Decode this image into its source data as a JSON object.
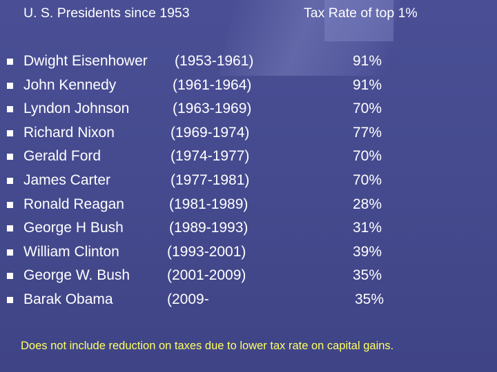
{
  "header": {
    "left_title": "U. S. Presidents since 1953",
    "right_title": "Tax Rate of top 1%"
  },
  "presidents": [
    {
      "name": "Dwight Eisenhower",
      "years": "(1953-1961)",
      "rate": "91%"
    },
    {
      "name": "John Kennedy",
      "years": "(1961-1964)",
      "rate": "91%"
    },
    {
      "name": "Lyndon Johnson",
      "years": "(1963-1969)",
      "rate": "70%"
    },
    {
      "name": "Richard Nixon",
      "years": "(1969-1974)",
      "rate": "77%"
    },
    {
      "name": "Gerald Ford",
      "years": "(1974-1977)",
      "rate": "70%"
    },
    {
      "name": "James Carter",
      "years": "(1977-1981)",
      "rate": "70%"
    },
    {
      "name": "Ronald Reagan",
      "years": "(1981-1989)",
      "rate": "28%"
    },
    {
      "name": "George H Bush",
      "years": "(1989-1993)",
      "rate": "31%"
    },
    {
      "name": "William Clinton",
      "years": "(1993-2001)",
      "rate": "39%"
    },
    {
      "name": "George W. Bush",
      "years": "(2001-2009)",
      "rate": "35%"
    },
    {
      "name": "Barak Obama",
      "years": "(2009-",
      "rate": "35%"
    }
  ],
  "footnote": "Does not include reduction on taxes due to lower tax rate on capital gains.",
  "colors": {
    "background": "#454a8f",
    "text": "#ffffff",
    "footnote": "#ffff66"
  }
}
